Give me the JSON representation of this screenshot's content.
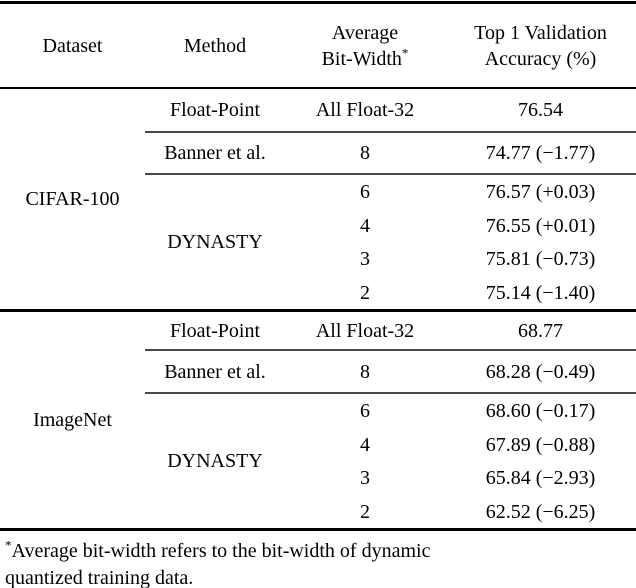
{
  "header": {
    "dataset": "Dataset",
    "method": "Method",
    "bitwidth": {
      "line1": "Average",
      "line2": "Bit-Width",
      "sup": "*"
    },
    "accuracy": {
      "line1": "Top 1 Validation",
      "line2": "Accuracy (%)"
    }
  },
  "sections": [
    {
      "dataset": "CIFAR-100",
      "float": {
        "method": "Float-Point",
        "bitwidth": "All Float-32",
        "accuracy": "76.54"
      },
      "banner": {
        "method": "Banner et al.",
        "bitwidth": "8",
        "accuracy": "74.77 (−1.77)"
      },
      "dynasty": {
        "method": "DYNASTY",
        "rows": [
          {
            "bitwidth": "6",
            "accuracy": "76.57 (+0.03)"
          },
          {
            "bitwidth": "4",
            "accuracy": "76.55 (+0.01)"
          },
          {
            "bitwidth": "3",
            "accuracy": "75.81 (−0.73)"
          },
          {
            "bitwidth": "2",
            "accuracy": "75.14 (−1.40)"
          }
        ]
      }
    },
    {
      "dataset": "ImageNet",
      "float": {
        "method": "Float-Point",
        "bitwidth": "All Float-32",
        "accuracy": "68.77"
      },
      "banner": {
        "method": "Banner et al.",
        "bitwidth": "8",
        "accuracy": "68.28 (−0.49)"
      },
      "dynasty": {
        "method": "DYNASTY",
        "rows": [
          {
            "bitwidth": "6",
            "accuracy": "68.60 (−0.17)"
          },
          {
            "bitwidth": "4",
            "accuracy": "67.89 (−0.88)"
          },
          {
            "bitwidth": "3",
            "accuracy": "65.84 (−2.93)"
          },
          {
            "bitwidth": "2",
            "accuracy": "62.52 (−6.25)"
          }
        ]
      }
    }
  ],
  "footnote": {
    "sup": "*",
    "line1": "Average bit-width refers to the bit-width of dynamic",
    "line2": "quantized training data."
  }
}
